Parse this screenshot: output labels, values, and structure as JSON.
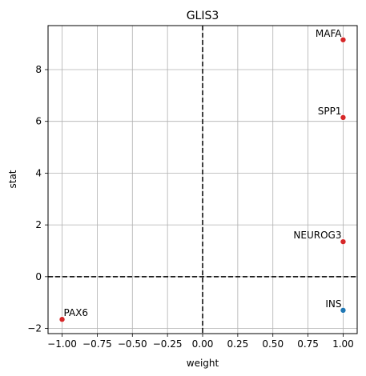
{
  "chart_data": {
    "type": "scatter",
    "title": "GLIS3",
    "xlabel": "weight",
    "ylabel": "stat",
    "xlim": [
      -1.1,
      1.1
    ],
    "ylim": [
      -2.2,
      9.7
    ],
    "xticks": [
      -1.0,
      -0.75,
      -0.5,
      -0.25,
      0.0,
      0.25,
      0.5,
      0.75,
      1.0
    ],
    "xtick_labels": [
      "−1.00",
      "−0.75",
      "−0.50",
      "−0.25",
      "0.00",
      "0.25",
      "0.50",
      "0.75",
      "1.00"
    ],
    "yticks": [
      -2,
      0,
      2,
      4,
      6,
      8
    ],
    "ytick_labels": [
      "−2",
      "0",
      "2",
      "4",
      "6",
      "8"
    ],
    "grid": true,
    "reference_lines": {
      "x": 0,
      "y": 0,
      "style": "dashed"
    },
    "points": [
      {
        "label": "MAFA",
        "x": 1.0,
        "y": 9.15,
        "color": "#d62728"
      },
      {
        "label": "SPP1",
        "x": 1.0,
        "y": 6.15,
        "color": "#d62728"
      },
      {
        "label": "NEUROG3",
        "x": 1.0,
        "y": 1.35,
        "color": "#d62728"
      },
      {
        "label": "INS",
        "x": 1.0,
        "y": -1.3,
        "color": "#1f77b4"
      },
      {
        "label": "PAX6",
        "x": -1.0,
        "y": -1.65,
        "color": "#d62728"
      }
    ]
  }
}
